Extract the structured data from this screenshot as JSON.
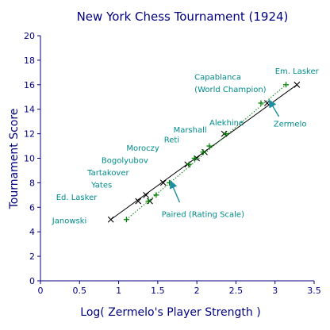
{
  "chart_data": {
    "type": "scatter",
    "title": "New York Chess Tournament (1924)",
    "xlabel": "Log( Zermelo's Player Strength )",
    "ylabel": "Tournament Score",
    "xlim": [
      0,
      3.5
    ],
    "ylim": [
      0,
      20
    ],
    "xticks": [
      "0",
      "0.5",
      "1",
      "1.5",
      "2",
      "2.5",
      "3",
      "3.5"
    ],
    "yticks": [
      "0",
      "2",
      "4",
      "6",
      "8",
      "10",
      "12",
      "14",
      "16",
      "18",
      "20"
    ],
    "grid": false,
    "colors": {
      "axis": "#000080",
      "labels": "#008b8b",
      "zermelo": "#000000",
      "paired": "#008000"
    },
    "players": [
      "Janowski",
      "Ed. Lasker",
      "Yates",
      "Tartakover",
      "Bogolyubov",
      "Moroczy",
      "Reti",
      "Marshall",
      "Alekhine",
      "Capablanca",
      "(World Champion)",
      "Em. Lasker"
    ],
    "series": [
      {
        "name": "Zermelo",
        "marker": "x",
        "points": [
          [
            0.9,
            5.0
          ],
          [
            1.25,
            6.5
          ],
          [
            1.35,
            7.0
          ],
          [
            1.4,
            6.5
          ],
          [
            1.57,
            8.0
          ],
          [
            1.88,
            9.5
          ],
          [
            2.0,
            10.0
          ],
          [
            2.1,
            10.5
          ],
          [
            2.35,
            12.0
          ],
          [
            2.9,
            14.5
          ],
          [
            3.28,
            16.0
          ]
        ]
      },
      {
        "name": "Paired (Rating Scale)",
        "marker": "+",
        "points": [
          [
            1.1,
            5.0
          ],
          [
            1.38,
            6.5
          ],
          [
            1.48,
            7.0
          ],
          [
            1.65,
            8.0
          ],
          [
            1.9,
            9.5
          ],
          [
            1.97,
            10.0
          ],
          [
            2.08,
            10.5
          ],
          [
            2.16,
            11.0
          ],
          [
            2.37,
            12.0
          ],
          [
            2.82,
            14.5
          ],
          [
            3.14,
            16.0
          ]
        ]
      }
    ],
    "annotations": [
      {
        "text": "Zermelo",
        "points_to": [
          2.92,
          14.8
        ]
      },
      {
        "text": "Paired (Rating Scale)",
        "points_to": [
          1.66,
          8.2
        ]
      }
    ]
  }
}
